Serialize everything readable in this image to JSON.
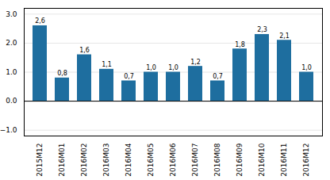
{
  "chart_data": {
    "type": "bar",
    "categories": [
      "2015M12",
      "2016M01",
      "2016M02",
      "2016M03",
      "2016M04",
      "2016M05",
      "2016M06",
      "2016M07",
      "2016M08",
      "2016M09",
      "2016M10",
      "2016M11",
      "2016M12"
    ],
    "values": [
      2.6,
      0.8,
      1.6,
      1.1,
      0.7,
      1.0,
      1.0,
      1.2,
      0.7,
      1.8,
      2.3,
      2.1,
      1.0
    ],
    "value_labels": [
      "2,6",
      "0,8",
      "1,6",
      "1,1",
      "0,7",
      "1,0",
      "1,0",
      "1,2",
      "0,7",
      "1,8",
      "2,3",
      "2,1",
      "1,0"
    ],
    "color": "#1e6e9f",
    "ylim": [
      -1.2,
      3.2
    ],
    "yticks": [
      -1,
      0,
      1,
      2,
      3
    ],
    "grid": true,
    "data_labels": true
  }
}
